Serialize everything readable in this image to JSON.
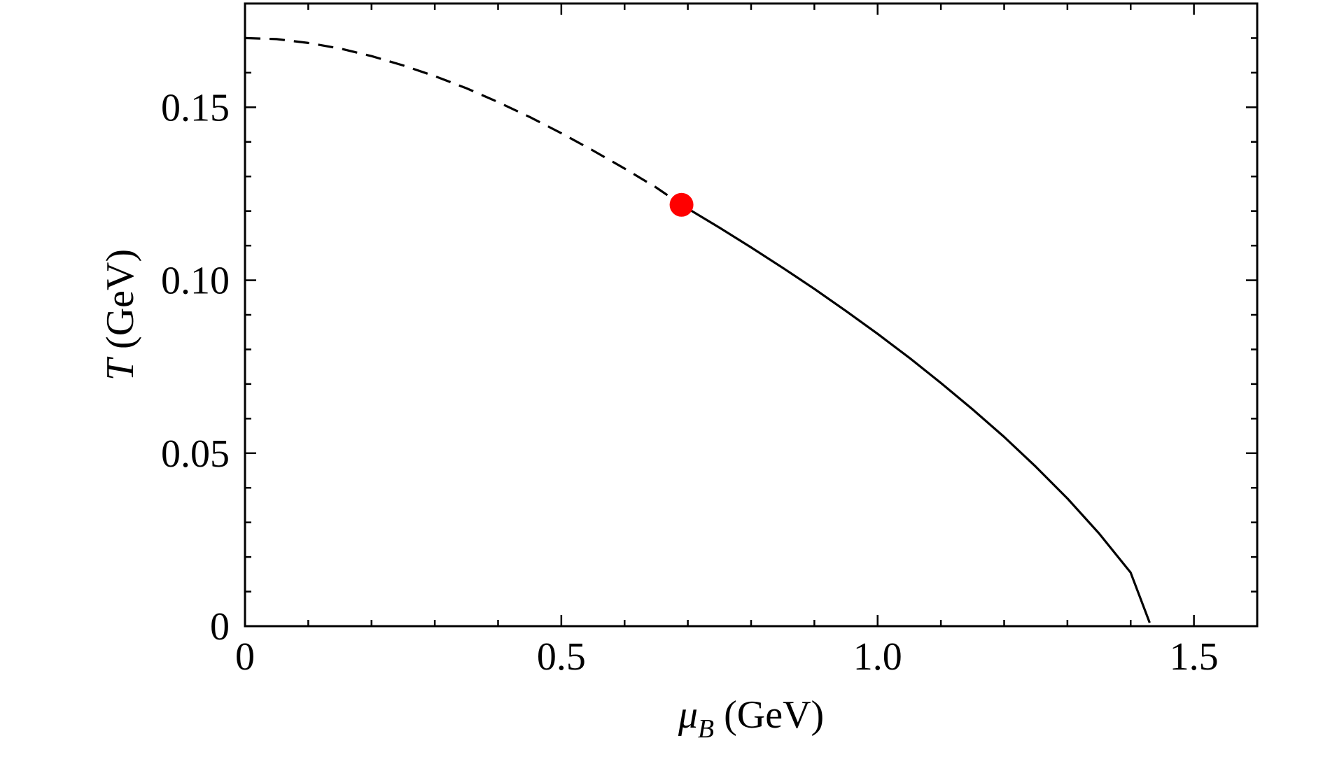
{
  "chart_data": {
    "type": "line",
    "title": "",
    "xlabel": {
      "symbol": "μ",
      "subscript": "B",
      "unit": "(GeV)"
    },
    "ylabel": {
      "symbol": "T",
      "unit": "(GeV)"
    },
    "xlim": [
      0,
      1.6
    ],
    "ylim": [
      0,
      0.18
    ],
    "x_major_ticks": [
      0,
      0.5,
      1.0,
      1.5
    ],
    "x_tick_labels": [
      "0",
      "0.5",
      "1.0",
      "1.5"
    ],
    "x_minor_step": 0.1,
    "y_major_ticks": [
      0,
      0.05,
      0.1,
      0.15
    ],
    "y_tick_labels": [
      "0",
      "0.05",
      "0.10",
      "0.15"
    ],
    "y_minor_step": 0.01,
    "grid": false,
    "legend": "none",
    "series": [
      {
        "style": "dashed",
        "color": "#000000",
        "x": [
          0,
          0.05,
          0.1,
          0.15,
          0.2,
          0.25,
          0.3,
          0.35,
          0.4,
          0.45,
          0.5,
          0.55,
          0.6,
          0.65,
          0.69
        ],
        "y": [
          0.17,
          0.1697,
          0.1686,
          0.167,
          0.1648,
          0.1621,
          0.159,
          0.1555,
          0.1515,
          0.1472,
          0.1425,
          0.1375,
          0.1323,
          0.1268,
          0.1218
        ]
      },
      {
        "style": "solid",
        "color": "#000000",
        "x": [
          0.69,
          0.75,
          0.8,
          0.85,
          0.9,
          0.95,
          1.0,
          1.05,
          1.1,
          1.15,
          1.2,
          1.25,
          1.3,
          1.35,
          1.4,
          1.43
        ],
        "y": [
          0.1218,
          0.1152,
          0.1095,
          0.1036,
          0.0975,
          0.0911,
          0.0845,
          0.0776,
          0.0703,
          0.0627,
          0.0547,
          0.0461,
          0.0369,
          0.0268,
          0.0155,
          0.001
        ]
      }
    ],
    "markers": [
      {
        "x": 0.69,
        "y": 0.1218,
        "color": "#ff0000"
      }
    ]
  }
}
